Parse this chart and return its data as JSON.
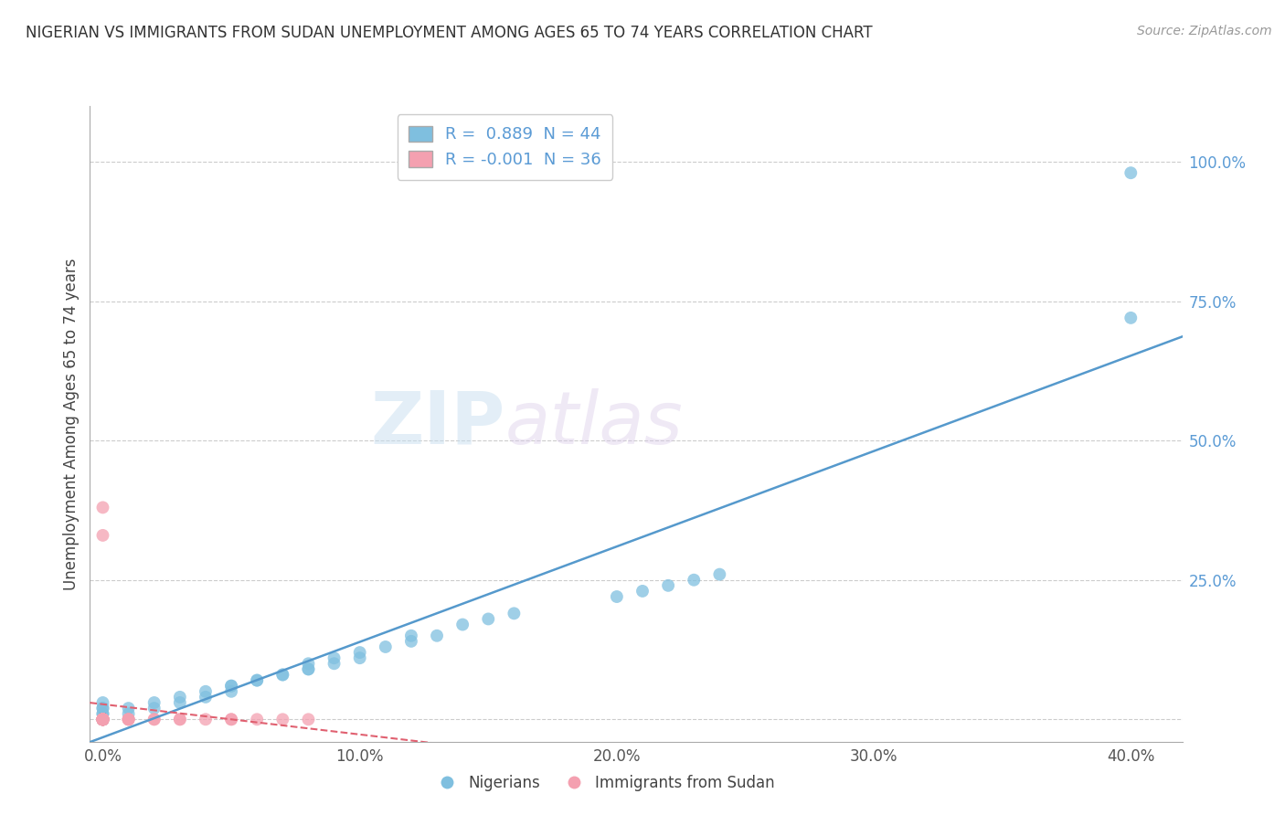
{
  "title": "NIGERIAN VS IMMIGRANTS FROM SUDAN UNEMPLOYMENT AMONG AGES 65 TO 74 YEARS CORRELATION CHART",
  "source": "Source: ZipAtlas.com",
  "ylabel_label": "Unemployment Among Ages 65 to 74 years",
  "x_ticks": [
    0.0,
    0.1,
    0.2,
    0.3,
    0.4
  ],
  "x_tick_labels": [
    "0.0%",
    "10.0%",
    "20.0%",
    "30.0%",
    "40.0%"
  ],
  "y_ticks": [
    0.0,
    0.25,
    0.5,
    0.75,
    1.0
  ],
  "y_tick_labels": [
    "",
    "25.0%",
    "50.0%",
    "75.0%",
    "100.0%"
  ],
  "xlim": [
    -0.005,
    0.42
  ],
  "ylim": [
    -0.04,
    1.1
  ],
  "legend_r1": "R =  0.889  N = 44",
  "legend_r2": "R = -0.001  N = 36",
  "legend_label1": "Nigerians",
  "legend_label2": "Immigrants from Sudan",
  "blue_color": "#7fbfdf",
  "pink_color": "#f4a0b0",
  "blue_line_color": "#5599cc",
  "pink_line_color": "#e06070",
  "watermark_zip": "ZIP",
  "watermark_atlas": "atlas",
  "background_color": "#ffffff",
  "grid_color": "#cccccc",
  "nigerians_x": [
    0.0,
    0.0,
    0.0,
    0.0,
    0.0,
    0.0,
    0.0,
    0.0,
    0.02,
    0.03,
    0.04,
    0.05,
    0.05,
    0.06,
    0.07,
    0.08,
    0.08,
    0.09,
    0.09,
    0.1,
    0.1,
    0.11,
    0.12,
    0.12,
    0.13,
    0.14,
    0.15,
    0.16,
    0.2,
    0.21,
    0.22,
    0.23,
    0.24,
    0.4,
    0.4,
    0.01,
    0.01,
    0.02,
    0.03,
    0.04,
    0.05,
    0.06,
    0.07,
    0.08
  ],
  "nigerians_y": [
    0.0,
    0.0,
    0.0,
    0.01,
    0.01,
    0.02,
    0.02,
    0.03,
    0.02,
    0.03,
    0.04,
    0.05,
    0.06,
    0.07,
    0.08,
    0.09,
    0.1,
    0.1,
    0.11,
    0.11,
    0.12,
    0.13,
    0.14,
    0.15,
    0.15,
    0.17,
    0.18,
    0.19,
    0.22,
    0.23,
    0.24,
    0.25,
    0.26,
    0.98,
    0.72,
    0.01,
    0.02,
    0.03,
    0.04,
    0.05,
    0.06,
    0.07,
    0.08,
    0.09
  ],
  "sudan_x": [
    0.0,
    0.0,
    0.0,
    0.0,
    0.0,
    0.0,
    0.0,
    0.0,
    0.0,
    0.0,
    0.0,
    0.0,
    0.0,
    0.0,
    0.0,
    0.0,
    0.0,
    0.0,
    0.0,
    0.0,
    0.0,
    0.0,
    0.01,
    0.01,
    0.01,
    0.01,
    0.02,
    0.02,
    0.03,
    0.03,
    0.04,
    0.05,
    0.05,
    0.06,
    0.07,
    0.08
  ],
  "sudan_y": [
    0.0,
    0.0,
    0.0,
    0.0,
    0.0,
    0.0,
    0.0,
    0.0,
    0.0,
    0.0,
    0.0,
    0.0,
    0.0,
    0.0,
    0.0,
    0.0,
    0.0,
    0.0,
    0.0,
    0.0,
    0.33,
    0.38,
    0.0,
    0.0,
    0.0,
    0.0,
    0.0,
    0.0,
    0.0,
    0.0,
    0.0,
    0.0,
    0.0,
    0.0,
    0.0,
    0.0
  ]
}
